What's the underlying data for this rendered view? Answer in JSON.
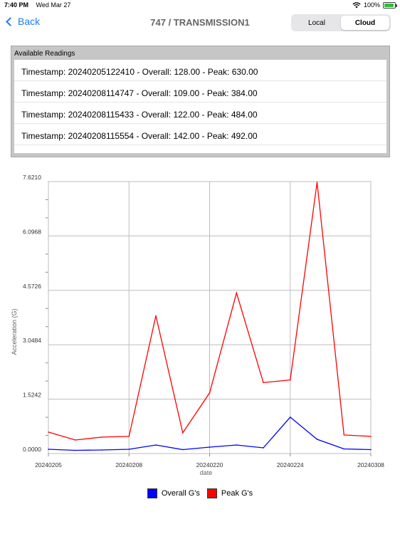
{
  "status": {
    "time": "7:40 PM",
    "date": "Wed Mar 27",
    "battery": "100%",
    "battery_level": 1.0
  },
  "nav": {
    "back_label": "Back",
    "title": "747 / TRANSMISSION1"
  },
  "segment": {
    "local": "Local",
    "cloud": "Cloud",
    "selected": "Cloud"
  },
  "readings": {
    "header": "Available Readings",
    "items": [
      "Timestamp: 20240205122410 - Overall: 128.00 - Peak: 630.00",
      "Timestamp: 20240208114747 - Overall: 109.00 - Peak: 384.00",
      "Timestamp: 20240208115433 - Overall: 122.00 - Peak: 484.00",
      "Timestamp: 20240208115554 - Overall: 142.00 - Peak: 492.00"
    ]
  },
  "colors": {
    "accent": "#1a7ef5",
    "overall": "#0000ff",
    "peak": "#ff0000",
    "grid": "#bdbdbd"
  },
  "chart_data": {
    "type": "line",
    "xlabel": "date",
    "ylabel": "Acceleration (G)",
    "ylim": [
      0,
      7.621
    ],
    "yticks": [
      "0.0000",
      "1.5242",
      "3.0484",
      "4.5726",
      "6.0968",
      "7.6210"
    ],
    "xticks": [
      "20240205",
      "20240208",
      "20240220",
      "20240224",
      "20240308"
    ],
    "n_points": 13,
    "legend_position": "bottom-center",
    "grid": true,
    "series": [
      {
        "name": "Overall G's",
        "color": "#0000ff",
        "values": [
          0.12,
          0.09,
          0.1,
          0.12,
          0.24,
          0.11,
          0.18,
          0.24,
          0.16,
          1.02,
          0.4,
          0.13,
          0.11
        ]
      },
      {
        "name": "Peak G's",
        "color": "#ff0000",
        "values": [
          0.6,
          0.38,
          0.46,
          0.48,
          3.86,
          0.58,
          1.7,
          4.5,
          1.99,
          2.06,
          7.6,
          0.52,
          0.48
        ]
      }
    ]
  }
}
